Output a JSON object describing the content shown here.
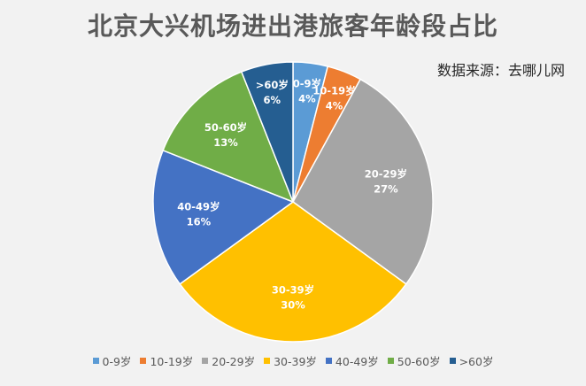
{
  "chart_data": {
    "type": "pie",
    "title": "北京大兴机场进出港旅客年龄段占比",
    "source": "数据来源：去哪儿网",
    "categories": [
      "0-9岁",
      "10-19岁",
      "20-29岁",
      "30-39岁",
      "40-49岁",
      "50-60岁",
      ">60岁"
    ],
    "values": [
      4,
      4,
      27,
      30,
      16,
      13,
      6
    ],
    "value_labels": [
      "4%",
      "4%",
      "27%",
      "30%",
      "16%",
      "13%",
      "6%"
    ],
    "colors": [
      "#5b9bd5",
      "#ed7d31",
      "#a5a5a5",
      "#ffc000",
      "#4472c4",
      "#70ad47",
      "#255e91"
    ],
    "legend_position": "bottom"
  }
}
